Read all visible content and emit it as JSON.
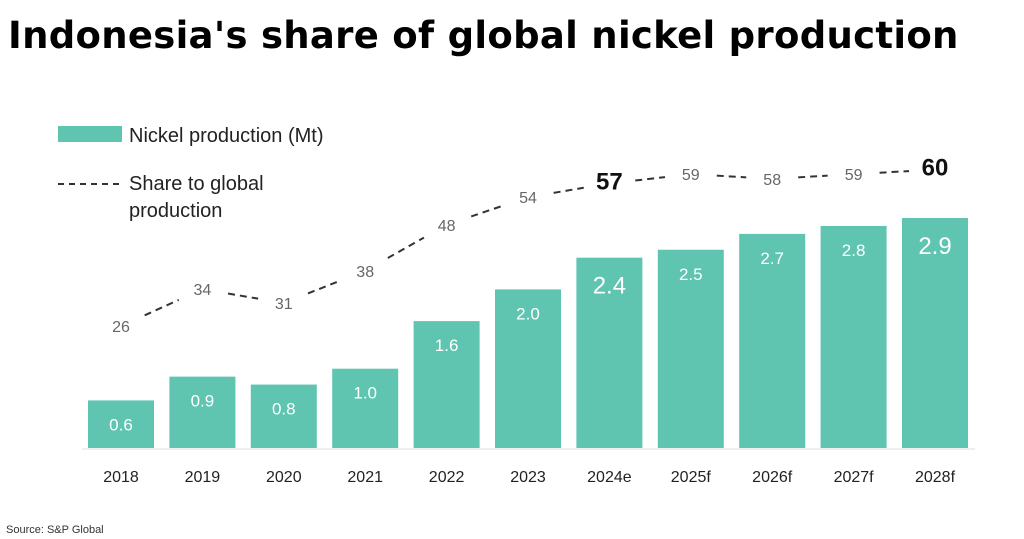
{
  "title": "Indonesia's share of global nickel production",
  "source": "Source: S&P Global",
  "chart_data": {
    "type": "bar+line",
    "title": "Indonesia's share of global nickel production",
    "categories": [
      "2018",
      "2019",
      "2020",
      "2021",
      "2022",
      "2023",
      "2024e",
      "2025f",
      "2026f",
      "2027f",
      "2028f"
    ],
    "series": [
      {
        "name": "Nickel production (Mt)",
        "type": "bar",
        "color": "#5fc4b0",
        "values": [
          0.6,
          0.9,
          0.8,
          1.0,
          1.6,
          2.0,
          2.4,
          2.5,
          2.7,
          2.8,
          2.9
        ],
        "labels": [
          "0.6",
          "0.9",
          "0.8",
          "1.0",
          "1.6",
          "2.0",
          "2.4",
          "2.5",
          "2.7",
          "2.8",
          "2.9"
        ]
      },
      {
        "name": "Share to global production",
        "type": "line",
        "style": "dashed",
        "color": "#333333",
        "values": [
          26,
          34,
          31,
          38,
          48,
          54,
          57,
          59,
          58,
          59,
          60
        ],
        "labels": [
          "26",
          "34",
          "31",
          "38",
          "48",
          "54",
          "57",
          "59",
          "58",
          "59",
          "60"
        ],
        "emphasized": [
          "2024e",
          "2028f"
        ]
      }
    ],
    "legend": {
      "position": "top-left",
      "entries": [
        "Nickel production (Mt)",
        "Share to global",
        "production"
      ]
    },
    "xlabel": "",
    "ylabel": "",
    "grid": false
  }
}
